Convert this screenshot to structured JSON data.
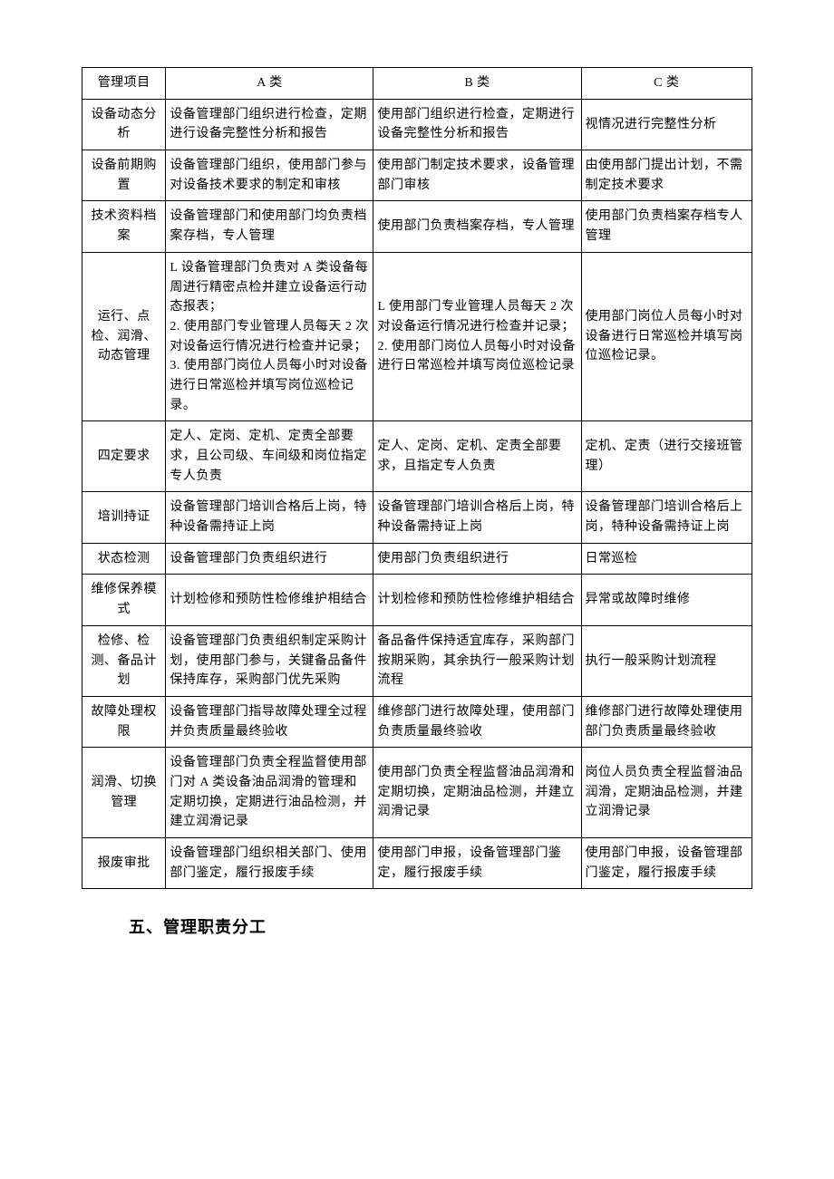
{
  "table": {
    "header": {
      "c0": "管理项目",
      "c1": "A 类",
      "c2": "B 类",
      "c3": "C 类"
    },
    "rows": [
      {
        "c0": "设备动态分析",
        "c1": "设备管理部门组织进行检查，定期进行设备完整性分析和报告",
        "c2": "使用部门组织进行检查，定期进行设备完整性分析和报告",
        "c3": "视情况进行完整性分析"
      },
      {
        "c0": "设备前期购置",
        "c1": "设备管理部门组织，使用部门参与对设备技术要求的制定和审核",
        "c2": "使用部门制定技术要求，设备管理部门审核",
        "c3": "由使用部门提出计划，不需制定技术要求"
      },
      {
        "c0": "技术资料档案",
        "c1": "设备管理部门和使用部门均负责档案存档，专人管理",
        "c2": "使用部门负责档案存档，专人管理",
        "c3": "使用部门负责档案存档专人管理"
      },
      {
        "c0": "运行、点检、润滑、动态管理",
        "c1": "L 设备管理部门负责对 A 类设备每周进行精密点检并建立设备运行动态报表；\n2. 使用部门专业管理人员每天 2 次对设备运行情况进行检查并记录；\n3. 使用部门岗位人员每小时对设备进行日常巡检并填写岗位巡检记录。",
        "c2": "L 使用部门专业管理人员每天 2 次对设备运行情况进行检查并记录；2. 使用部门岗位人员每小时对设备进行日常巡检并填写岗位巡检记录",
        "c3": "使用部门岗位人员每小时对设备进行日常巡检并填写岗位巡检记录。"
      },
      {
        "c0": "四定要求",
        "c1": "定人、定岗、定机、定责全部要求，且公司级、车间级和岗位指定专人负责",
        "c2": "定人、定岗、定机、定责全部要求，且指定专人负责",
        "c3": "定机、定责（进行交接班管理）"
      },
      {
        "c0": "培训持证",
        "c1": "设备管理部门培训合格后上岗，特种设备需持证上岗",
        "c2": "设备管理部门培训合格后上岗，特种设备需持证上岗",
        "c3": "设备管理部门培训合格后上岗，特种设备需持证上岗"
      },
      {
        "c0": "状态检测",
        "c1": "设备管理部门负责组织进行",
        "c2": "使用部门负责组织进行",
        "c3": "日常巡检"
      },
      {
        "c0": "维修保养模式",
        "c1": "计划检修和预防性检修维护相结合",
        "c2": "计划检修和预防性检修维护相结合",
        "c3": "异常或故障时维修"
      },
      {
        "c0": "检修、检测、备品计划",
        "c1": "设备管理部门负责组织制定采购计划，使用部门参与，关键备品备件保持库存，采购部门优先采购",
        "c2": "备品备件保持适宜库存，采购部门按期采购，其余执行一般采购计划流程",
        "c3": "执行一般采购计划流程"
      },
      {
        "c0": "故障处理权限",
        "c1": "设备管理部门指导故障处理全过程并负责质量最终验收",
        "c2": "维修部门进行故障处理，使用部门负责质量最终验收",
        "c3": "维修部门进行故障处理使用部门负责质量最终验收"
      },
      {
        "c0": "润滑、切换管理",
        "c1": "设备管理部门负责全程监督使用部门对 A 类设备油品润滑的管理和定期切换，定期进行油品检测，并建立润滑记录",
        "c2": "使用部门负责全程监督油品润滑和定期切换，定期油品检测，并建立润滑记录",
        "c3": "岗位人员负责全程监督油品润滑，定期油品检测，并建立润滑记录"
      },
      {
        "c0": "报废审批",
        "c1": "设备管理部门组织相关部门、使用部门鉴定，履行报废手续",
        "c2": "使用部门申报，设备管理部门鉴定，履行报废手续",
        "c3": "使用部门申报，设备管理部门鉴定，履行报废手续"
      }
    ]
  },
  "heading": "五、管理职责分工"
}
